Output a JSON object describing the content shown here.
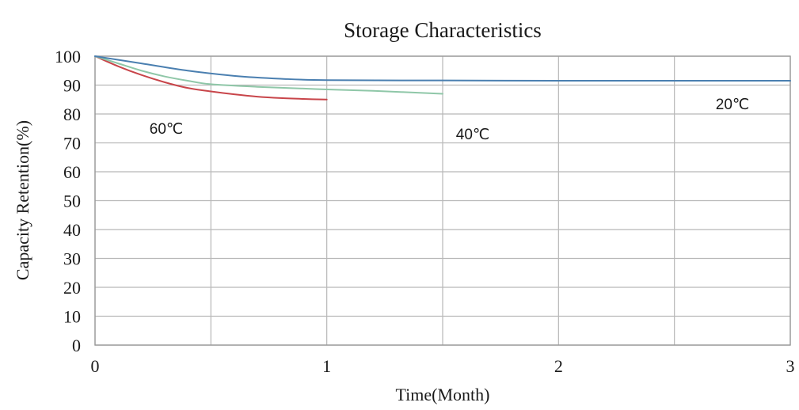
{
  "chart_data": {
    "type": "line",
    "title": "Storage Characteristics",
    "xlabel": "Time(Month)",
    "ylabel": "Capacity Retention(%)",
    "xlim": [
      0,
      3
    ],
    "ylim": [
      0,
      100
    ],
    "x_ticks": [
      0,
      1,
      2,
      3
    ],
    "x_minor_gridlines": [
      0.5,
      1.5,
      2.5
    ],
    "y_ticks": [
      0,
      10,
      20,
      30,
      40,
      50,
      60,
      70,
      80,
      90,
      100
    ],
    "grid": true,
    "legend": "none",
    "series": [
      {
        "name": "60℃",
        "color": "#c8454a",
        "points": [
          [
            0,
            100
          ],
          [
            0.1,
            96.5
          ],
          [
            0.2,
            93.5
          ],
          [
            0.3,
            91
          ],
          [
            0.4,
            89
          ],
          [
            0.5,
            87.8
          ],
          [
            0.6,
            86.8
          ],
          [
            0.7,
            86
          ],
          [
            0.8,
            85.5
          ],
          [
            0.9,
            85.2
          ],
          [
            1.0,
            85
          ]
        ]
      },
      {
        "name": "40℃",
        "color": "#8fc7a8",
        "points": [
          [
            0,
            100
          ],
          [
            0.1,
            97.5
          ],
          [
            0.2,
            95
          ],
          [
            0.3,
            93
          ],
          [
            0.4,
            91.5
          ],
          [
            0.5,
            90.3
          ],
          [
            0.7,
            89.4
          ],
          [
            0.9,
            88.8
          ],
          [
            1.0,
            88.5
          ],
          [
            1.2,
            88
          ],
          [
            1.5,
            87
          ]
        ]
      },
      {
        "name": "20℃",
        "color": "#4a7fb0",
        "points": [
          [
            0,
            100
          ],
          [
            0.2,
            97.5
          ],
          [
            0.4,
            95
          ],
          [
            0.6,
            93.2
          ],
          [
            0.8,
            92.2
          ],
          [
            1.0,
            91.7
          ],
          [
            1.5,
            91.6
          ],
          [
            2.0,
            91.5
          ],
          [
            2.5,
            91.5
          ],
          [
            3.0,
            91.5
          ]
        ]
      }
    ]
  }
}
